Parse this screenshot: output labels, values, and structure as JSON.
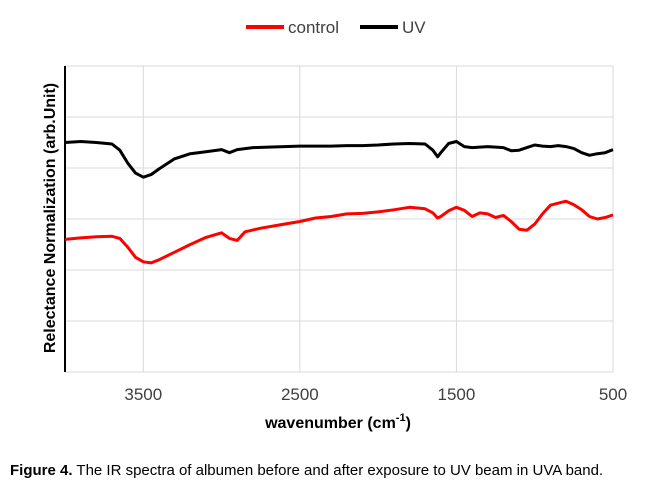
{
  "chart_data": {
    "type": "line",
    "title": "",
    "xlabel": "wavenumber",
    "xlabel_unit_base": "cm",
    "xlabel_unit_sup": "-1",
    "ylabel": "Relectance Normalization (arb.Unit)",
    "x_reversed": true,
    "xlim": [
      4000,
      500
    ],
    "ylim": [
      0,
      6
    ],
    "xticks": [
      3500,
      2500,
      1500,
      500
    ],
    "xtick_labels": [
      "3500",
      "2500",
      "1500",
      "500"
    ],
    "grid": true,
    "legend_position": "top-center",
    "series": [
      {
        "name": "control",
        "color": "#ff0000",
        "points": [
          [
            4000,
            2.6
          ],
          [
            3900,
            2.63
          ],
          [
            3800,
            2.65
          ],
          [
            3700,
            2.66
          ],
          [
            3650,
            2.62
          ],
          [
            3600,
            2.45
          ],
          [
            3550,
            2.25
          ],
          [
            3500,
            2.16
          ],
          [
            3450,
            2.14
          ],
          [
            3400,
            2.2
          ],
          [
            3300,
            2.35
          ],
          [
            3200,
            2.5
          ],
          [
            3100,
            2.64
          ],
          [
            3000,
            2.73
          ],
          [
            2950,
            2.62
          ],
          [
            2900,
            2.58
          ],
          [
            2850,
            2.75
          ],
          [
            2750,
            2.82
          ],
          [
            2600,
            2.9
          ],
          [
            2500,
            2.95
          ],
          [
            2400,
            3.02
          ],
          [
            2300,
            3.05
          ],
          [
            2200,
            3.1
          ],
          [
            2100,
            3.11
          ],
          [
            2000,
            3.14
          ],
          [
            1900,
            3.18
          ],
          [
            1800,
            3.23
          ],
          [
            1700,
            3.2
          ],
          [
            1650,
            3.12
          ],
          [
            1620,
            3.02
          ],
          [
            1600,
            3.05
          ],
          [
            1550,
            3.16
          ],
          [
            1500,
            3.23
          ],
          [
            1450,
            3.17
          ],
          [
            1400,
            3.05
          ],
          [
            1350,
            3.12
          ],
          [
            1300,
            3.1
          ],
          [
            1250,
            3.03
          ],
          [
            1200,
            3.07
          ],
          [
            1150,
            2.95
          ],
          [
            1100,
            2.8
          ],
          [
            1050,
            2.78
          ],
          [
            1000,
            2.9
          ],
          [
            950,
            3.1
          ],
          [
            900,
            3.27
          ],
          [
            800,
            3.35
          ],
          [
            750,
            3.28
          ],
          [
            700,
            3.18
          ],
          [
            650,
            3.05
          ],
          [
            600,
            3.0
          ],
          [
            550,
            3.03
          ],
          [
            500,
            3.08
          ]
        ]
      },
      {
        "name": "UV",
        "color": "#000000",
        "points": [
          [
            4000,
            4.5
          ],
          [
            3900,
            4.52
          ],
          [
            3800,
            4.5
          ],
          [
            3700,
            4.47
          ],
          [
            3650,
            4.35
          ],
          [
            3600,
            4.1
          ],
          [
            3550,
            3.9
          ],
          [
            3500,
            3.82
          ],
          [
            3450,
            3.87
          ],
          [
            3400,
            3.98
          ],
          [
            3300,
            4.18
          ],
          [
            3200,
            4.28
          ],
          [
            3100,
            4.32
          ],
          [
            3000,
            4.36
          ],
          [
            2950,
            4.3
          ],
          [
            2900,
            4.36
          ],
          [
            2800,
            4.4
          ],
          [
            2700,
            4.41
          ],
          [
            2600,
            4.42
          ],
          [
            2500,
            4.43
          ],
          [
            2400,
            4.43
          ],
          [
            2300,
            4.43
          ],
          [
            2200,
            4.44
          ],
          [
            2100,
            4.44
          ],
          [
            2000,
            4.45
          ],
          [
            1900,
            4.47
          ],
          [
            1800,
            4.48
          ],
          [
            1700,
            4.47
          ],
          [
            1650,
            4.35
          ],
          [
            1620,
            4.22
          ],
          [
            1600,
            4.3
          ],
          [
            1550,
            4.48
          ],
          [
            1500,
            4.52
          ],
          [
            1450,
            4.42
          ],
          [
            1400,
            4.4
          ],
          [
            1350,
            4.41
          ],
          [
            1300,
            4.42
          ],
          [
            1250,
            4.41
          ],
          [
            1200,
            4.4
          ],
          [
            1150,
            4.34
          ],
          [
            1100,
            4.35
          ],
          [
            1050,
            4.4
          ],
          [
            1000,
            4.45
          ],
          [
            950,
            4.43
          ],
          [
            900,
            4.42
          ],
          [
            850,
            4.44
          ],
          [
            800,
            4.42
          ],
          [
            750,
            4.38
          ],
          [
            700,
            4.3
          ],
          [
            650,
            4.25
          ],
          [
            600,
            4.28
          ],
          [
            550,
            4.3
          ],
          [
            500,
            4.36
          ]
        ]
      }
    ]
  },
  "caption": {
    "label": "Figure 4.",
    "text": " The IR spectra of albumen before and after exposure to UV beam in UVA band."
  }
}
